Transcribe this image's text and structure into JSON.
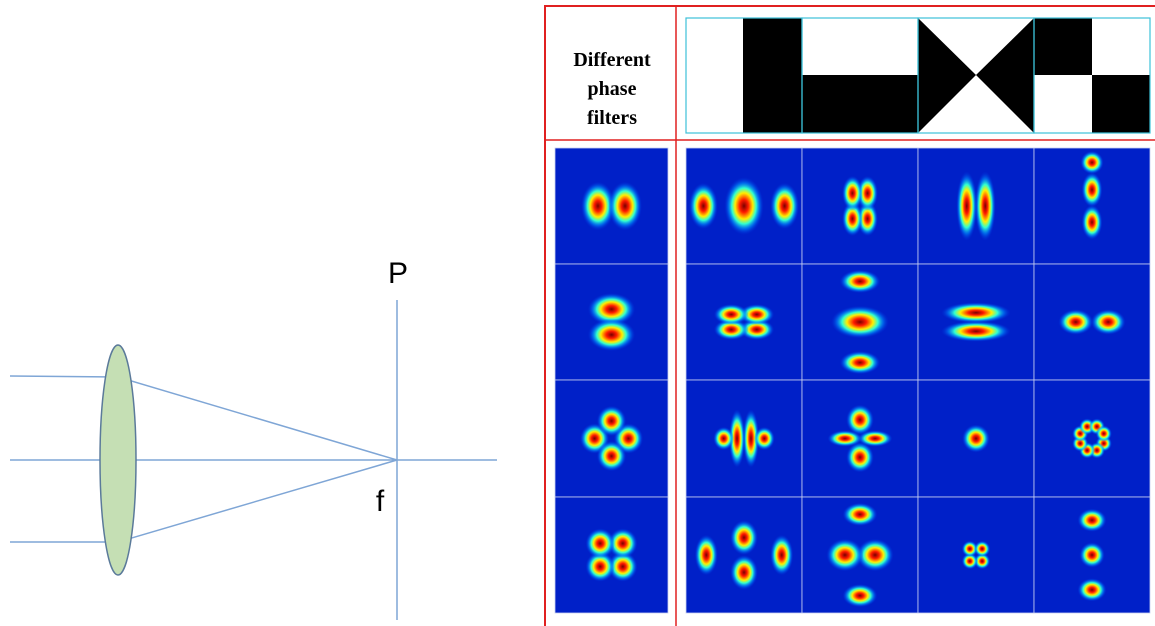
{
  "lens": {
    "focal_plane_label": "P",
    "focus_label": "f"
  },
  "table": {
    "row_header": [
      "Different",
      "phase",
      "filters"
    ]
  }
}
